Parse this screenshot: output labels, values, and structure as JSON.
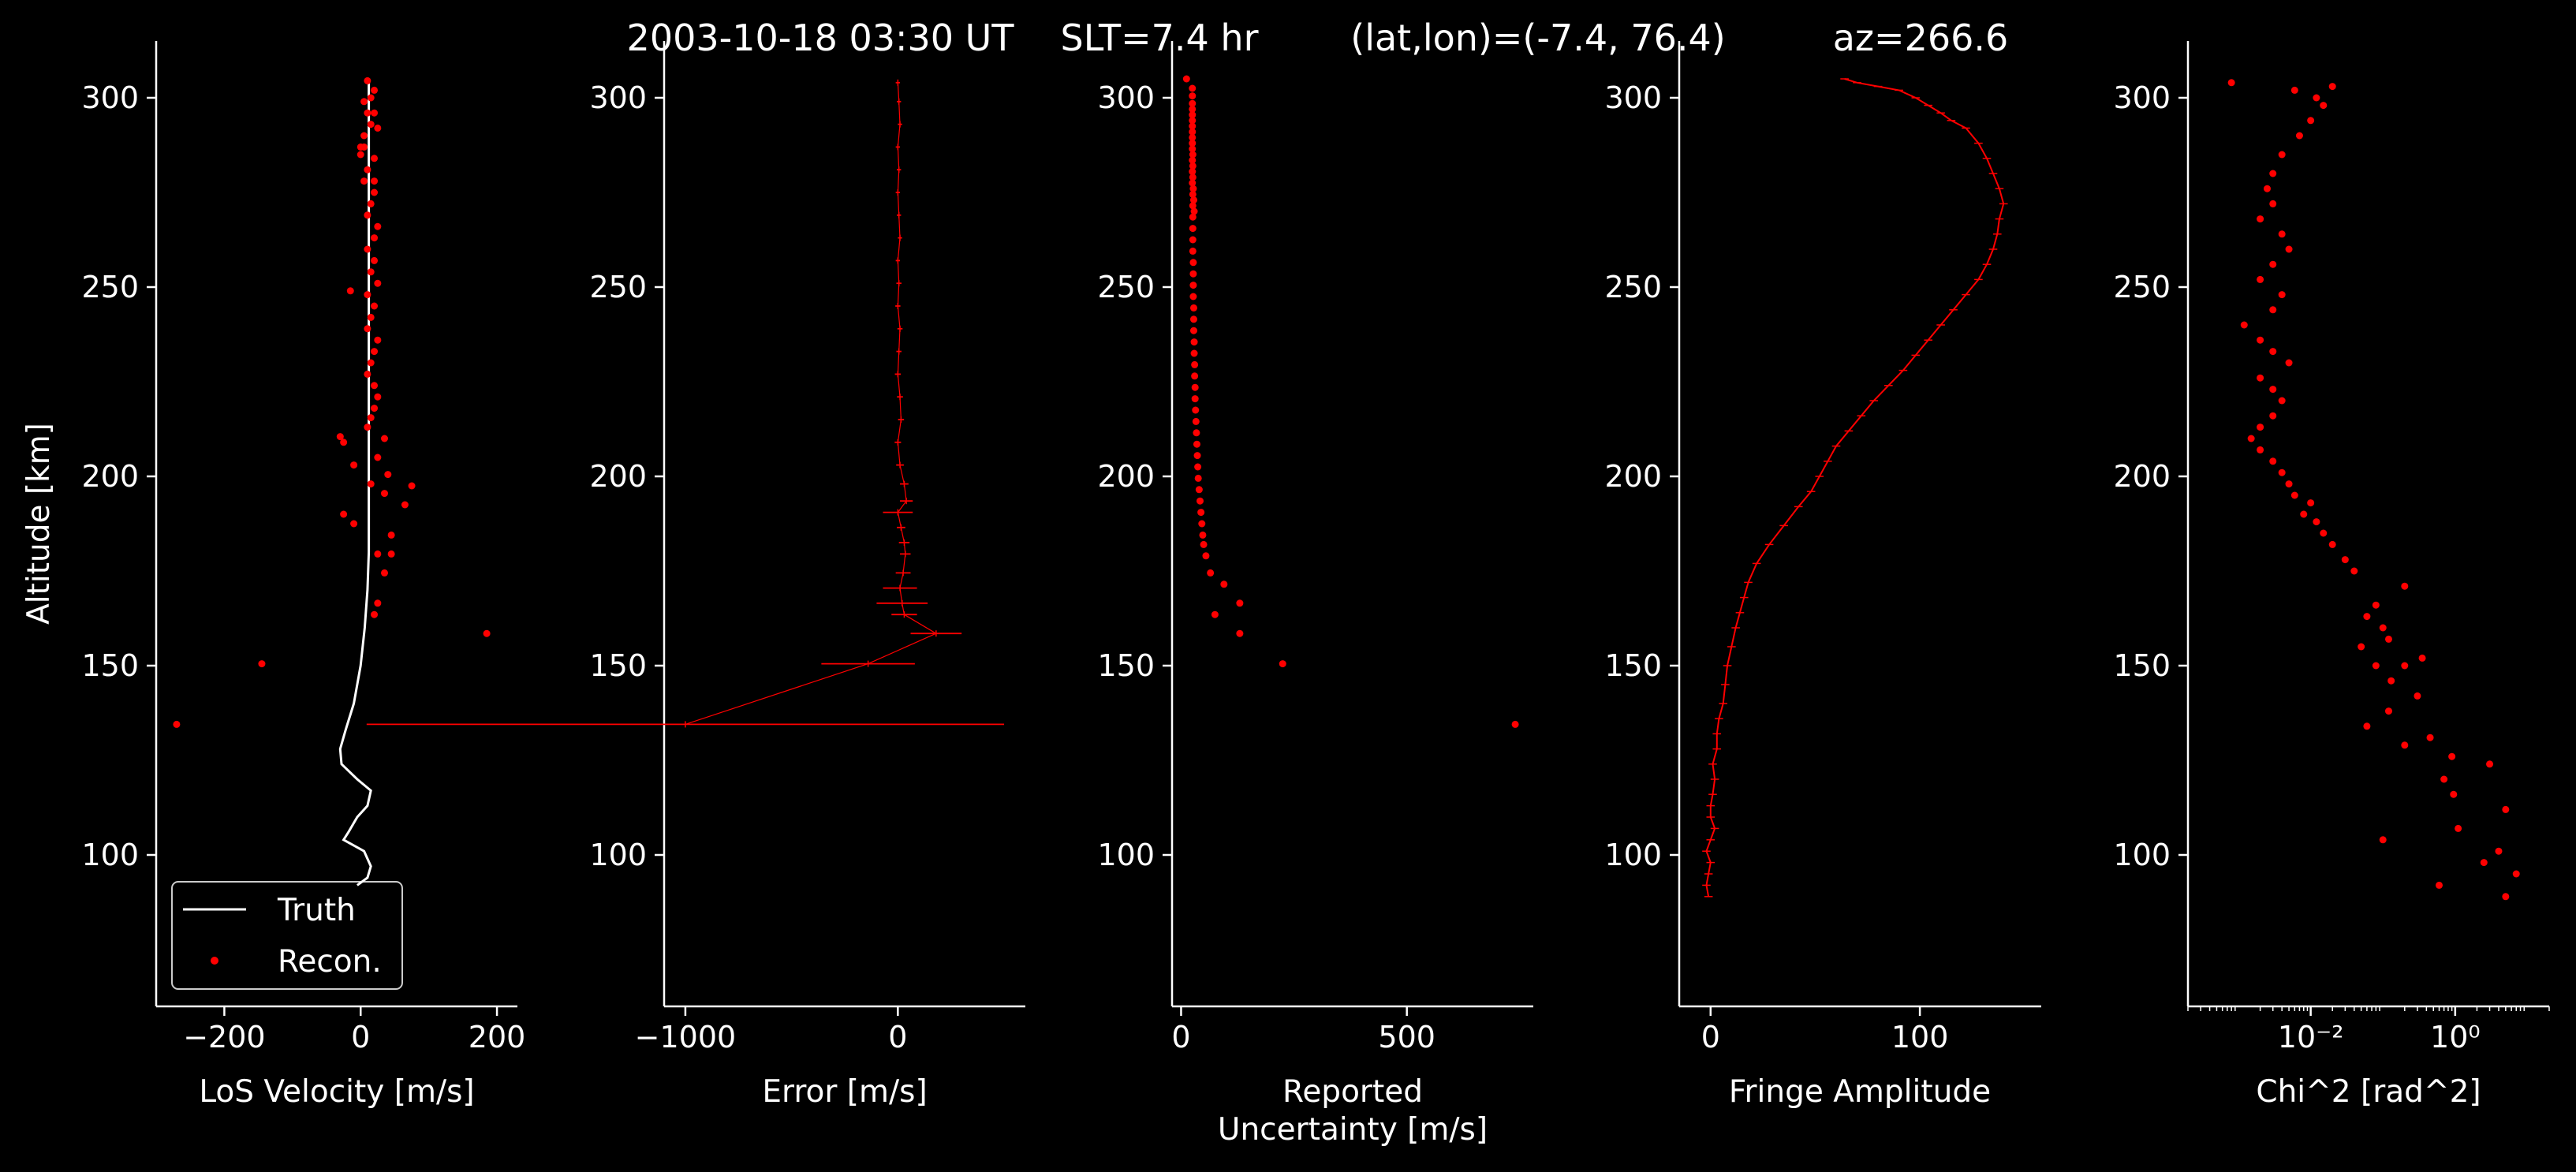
{
  "figure": {
    "title_date": "2003-10-18 03:30 UT",
    "title_slt": "SLT=7.4 hr",
    "title_latlon": "(lat,lon)=(-7.4, 76.4)",
    "title_az": "az=266.6",
    "background": "#000000",
    "foreground": "#ffffff",
    "data_color": "#ff0000"
  },
  "chart_data": [
    {
      "type": "line",
      "xlabel": "LoS Velocity [m/s]",
      "ylabel": "Altitude [km]",
      "xlim": [
        -300,
        230
      ],
      "ylim": [
        60,
        315
      ],
      "xticks": [
        -200,
        0,
        200
      ],
      "xtick_labels": [
        "−200",
        "0",
        "200"
      ],
      "yticks": [
        100,
        150,
        200,
        250,
        300
      ],
      "ytick_labels": [
        "100",
        "150",
        "200",
        "250",
        "300"
      ],
      "grid": false,
      "legend": {
        "placement": "lower-left",
        "entries": [
          "Truth",
          "Recon."
        ]
      },
      "series": [
        {
          "name": "Truth",
          "style": "line",
          "color": "#ffffff",
          "x": [
            -5,
            10,
            15,
            5,
            -25,
            -18,
            -5,
            10,
            15,
            -5,
            -28,
            -30,
            -22,
            -10,
            0,
            6,
            10,
            12,
            12,
            12,
            12,
            12,
            12,
            12,
            12,
            12,
            12
          ],
          "y": [
            92,
            94,
            97,
            101,
            104,
            106,
            110,
            113,
            117,
            120,
            124,
            128,
            133,
            140,
            150,
            160,
            170,
            180,
            190,
            200,
            210,
            220,
            240,
            260,
            280,
            300,
            305
          ]
        },
        {
          "name": "Recon.",
          "style": "points",
          "color": "#ff0000",
          "x": [
            -270,
            -145,
            185,
            20,
            25,
            35,
            45,
            25,
            45,
            -10,
            65,
            35,
            -25,
            75,
            15,
            40,
            25,
            -10,
            35,
            -25,
            -30,
            10,
            15,
            20,
            25,
            20,
            10,
            15,
            20,
            25,
            10,
            15,
            20,
            10,
            25,
            15,
            20,
            10,
            -15,
            20,
            25,
            10,
            15,
            20,
            5,
            10,
            20,
            0,
            5,
            15,
            20,
            5,
            20,
            10,
            25,
            5,
            20,
            0,
            10,
            15
          ],
          "y": [
            134.5,
            150.5,
            158.5,
            163.5,
            166.5,
            174.5,
            179.5,
            179.5,
            184.5,
            187.5,
            192.5,
            195.5,
            190,
            197.5,
            198,
            200.5,
            205,
            203,
            210,
            209,
            210.5,
            213,
            215.5,
            218,
            221,
            224,
            227,
            230,
            233,
            236,
            239,
            242,
            245,
            248,
            251,
            254,
            257,
            260,
            249,
            263,
            266,
            269,
            272,
            275,
            278,
            281,
            284,
            287,
            290,
            293,
            296,
            299,
            302,
            304.5,
            292,
            287,
            278,
            285,
            296,
            300
          ]
        }
      ]
    },
    {
      "type": "scatter",
      "xlabel": "Error [m/s]",
      "ylabel": "",
      "xlim": [
        -1100,
        600
      ],
      "ylim": [
        60,
        315
      ],
      "xticks": [
        -1000,
        0
      ],
      "xtick_labels": [
        "−1000",
        "0"
      ],
      "yticks": [
        100,
        150,
        200,
        250,
        300
      ],
      "ytick_labels": [
        "100",
        "150",
        "200",
        "250",
        "300"
      ],
      "grid": false,
      "series": [
        {
          "name": "",
          "style": "errorbar",
          "color": "#ff0000",
          "y": [
            134.5,
            150.5,
            158.5,
            163.5,
            166.5,
            170.5,
            174.5,
            179.5,
            182.5,
            186.5,
            190.5,
            193.5,
            198,
            203,
            209,
            215,
            221,
            227,
            233,
            239,
            245,
            251,
            257,
            263,
            269,
            275,
            281,
            287,
            293,
            299,
            304
          ],
          "x": [
            -1000,
            -140,
            180,
            30,
            20,
            10,
            25,
            35,
            30,
            15,
            0,
            40,
            30,
            10,
            0,
            15,
            10,
            0,
            5,
            10,
            0,
            5,
            0,
            10,
            5,
            0,
            5,
            0,
            10,
            5,
            0
          ],
          "err": [
            1500,
            220,
            120,
            60,
            120,
            80,
            35,
            25,
            25,
            20,
            70,
            30,
            20,
            18,
            15,
            14,
            14,
            14,
            12,
            12,
            12,
            12,
            10,
            10,
            10,
            10,
            10,
            10,
            10,
            10,
            10
          ]
        }
      ]
    },
    {
      "type": "scatter",
      "xlabel": "Reported Uncertainty [m/s]",
      "xlabel_line1": "Reported",
      "xlabel_line2": "Uncertainty [m/s]",
      "ylabel": "",
      "xlim": [
        -20,
        780
      ],
      "ylim": [
        60,
        315
      ],
      "xticks": [
        0,
        500
      ],
      "xtick_labels": [
        "0",
        "500"
      ],
      "yticks": [
        100,
        150,
        200,
        250,
        300
      ],
      "ytick_labels": [
        "100",
        "150",
        "200",
        "250",
        "300"
      ],
      "grid": false,
      "series": [
        {
          "name": "",
          "style": "points",
          "color": "#ff0000",
          "x": [
            740,
            225,
            130,
            75,
            130,
            95,
            65,
            55,
            50,
            48,
            46,
            44,
            42,
            40,
            38,
            37,
            36,
            35,
            34,
            33,
            32,
            31,
            31,
            30,
            30,
            29,
            29,
            28,
            28,
            28,
            27,
            27,
            27,
            27,
            26,
            26,
            26,
            26,
            26,
            26,
            25,
            25,
            25,
            25,
            25,
            25,
            25,
            25,
            25,
            25,
            25,
            25,
            25,
            25,
            26,
            26,
            26,
            27,
            28,
            29,
            12
          ],
          "y": [
            134.5,
            150.5,
            158.5,
            163.5,
            166.5,
            171.5,
            174.5,
            179,
            182,
            184.5,
            187.5,
            190.5,
            193.5,
            196.5,
            199.5,
            202.5,
            205.5,
            208.5,
            211.5,
            214.5,
            217.5,
            220.5,
            223.5,
            226.5,
            229.5,
            232.5,
            235.5,
            238.5,
            241.5,
            244.5,
            247.5,
            250.5,
            253.5,
            256.5,
            259.5,
            262.5,
            265.5,
            268.5,
            271.5,
            274.5,
            277.5,
            280.5,
            283.5,
            286.5,
            289.5,
            292.5,
            295.5,
            298.5,
            300.5,
            302.5,
            297,
            294,
            291,
            288,
            285,
            282,
            279,
            276,
            273,
            270,
            305
          ]
        }
      ]
    },
    {
      "type": "line",
      "xlabel": "Fringe Amplitude",
      "ylabel": "",
      "xlim": [
        -15,
        158
      ],
      "ylim": [
        60,
        315
      ],
      "xticks": [
        0,
        100
      ],
      "xtick_labels": [
        "0",
        "100"
      ],
      "yticks": [
        100,
        150,
        200,
        250,
        300
      ],
      "ytick_labels": [
        "100",
        "150",
        "200",
        "250",
        "300"
      ],
      "grid": false,
      "series": [
        {
          "name": "",
          "style": "line-errorbar",
          "color": "#ff0000",
          "x": [
            -1,
            -2,
            -1,
            0,
            -2,
            0,
            2,
            0,
            0,
            1,
            2,
            1,
            3,
            3,
            4,
            6,
            7,
            8,
            10,
            12,
            14,
            16,
            18,
            22,
            28,
            35,
            42,
            48,
            52,
            56,
            60,
            66,
            72,
            78,
            85,
            92,
            98,
            104,
            110,
            116,
            122,
            128,
            132,
            135,
            137,
            138,
            140,
            138,
            135,
            132,
            128,
            122,
            115,
            110,
            104,
            98,
            90,
            80,
            70,
            64
          ],
          "y": [
            89,
            92,
            95,
            98,
            101,
            104,
            107,
            110,
            113,
            116,
            120,
            124,
            128,
            132,
            136,
            140,
            145,
            150,
            155,
            160,
            164,
            168,
            172,
            177,
            182,
            187,
            192,
            196,
            200,
            204,
            208,
            212,
            216,
            220,
            224,
            228,
            232,
            236,
            240,
            244,
            248,
            252,
            256,
            260,
            264,
            268,
            272,
            276,
            280,
            284,
            288,
            292,
            294,
            296,
            298,
            300,
            302,
            303,
            304,
            305
          ],
          "err": [
            2,
            2,
            2,
            2,
            2,
            2,
            2,
            2,
            2,
            2,
            2,
            2,
            2,
            2,
            2,
            2,
            2,
            2,
            2,
            2,
            2,
            2,
            2,
            2,
            2,
            2,
            2,
            2,
            2,
            2,
            2,
            2,
            2,
            2,
            2,
            2,
            2,
            2,
            2,
            2,
            2,
            2,
            2,
            2,
            2,
            2,
            2,
            2,
            2,
            2,
            2,
            2,
            2,
            2,
            2,
            2,
            2,
            2,
            2,
            2
          ]
        }
      ]
    },
    {
      "type": "scatter",
      "xlabel": "Chi^2 [rad^2]",
      "ylabel": "",
      "xscale": "log",
      "xlim": [
        0.0002,
        20
      ],
      "ylim": [
        60,
        315
      ],
      "xticks": [
        0.01,
        1
      ],
      "xtick_labels": [
        "10⁻²",
        "10⁰"
      ],
      "yticks": [
        100,
        150,
        200,
        250,
        300
      ],
      "ytick_labels": [
        "100",
        "150",
        "200",
        "250",
        "300"
      ],
      "grid": false,
      "series": [
        {
          "name": "",
          "style": "points",
          "color": "#ff0000",
          "x": [
            5,
            0.6,
            7,
            2.5,
            4,
            0.1,
            1.1,
            5,
            0.95,
            0.7,
            3,
            0.9,
            0.2,
            0.45,
            0.06,
            0.12,
            0.3,
            0.13,
            0.2,
            0.35,
            0.08,
            0.05,
            0.12,
            0.1,
            0.06,
            0.08,
            0.2,
            0.04,
            0.03,
            0.02,
            0.015,
            0.012,
            0.008,
            0.01,
            0.006,
            0.005,
            0.004,
            0.003,
            0.002,
            0.0015,
            0.002,
            0.003,
            0.004,
            0.003,
            0.002,
            0.005,
            0.003,
            0.002,
            0.0012,
            0.003,
            0.004,
            0.002,
            0.003,
            0.005,
            0.004,
            0.002,
            0.003,
            0.0025,
            0.003,
            0.004,
            0.007,
            0.01,
            0.015,
            0.012,
            0.006,
            0.0008,
            0.02
          ],
          "y": [
            89,
            92,
            95,
            98,
            101,
            104,
            107,
            112,
            116,
            120,
            124,
            126,
            129,
            131,
            134,
            138,
            142,
            146,
            150,
            152,
            150,
            155,
            157,
            160,
            163,
            166,
            171,
            175,
            178,
            182,
            185,
            188,
            190,
            193,
            195,
            198,
            201,
            204,
            207,
            210,
            213,
            216,
            220,
            223,
            226,
            230,
            233,
            236,
            240,
            244,
            248,
            252,
            256,
            260,
            264,
            268,
            272,
            276,
            280,
            285,
            290,
            294,
            298,
            300,
            302,
            304,
            303
          ]
        }
      ]
    }
  ]
}
